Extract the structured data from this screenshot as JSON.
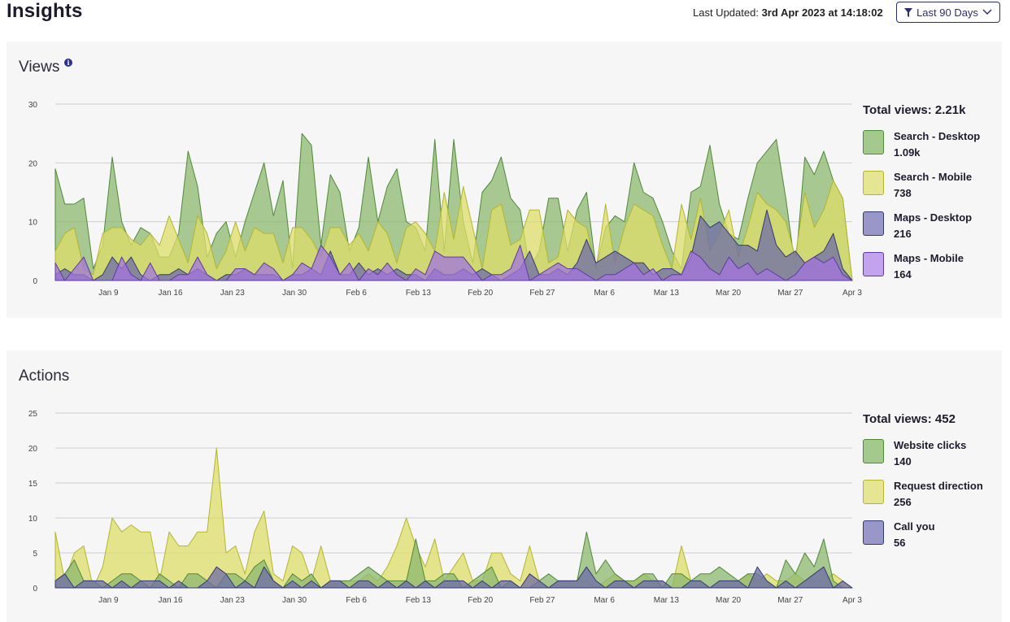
{
  "header": {
    "title": "Insights",
    "last_updated_label": "Last Updated:",
    "last_updated_value": "3rd Apr 2023 at 14:18:02",
    "range_button_label": "Last 90 Days"
  },
  "colors": {
    "panel_bg": "#f6f6f6",
    "accent": "#2a2f6e",
    "green_fill": "#8cb86e",
    "green_stroke": "#4f8a35",
    "yellow_fill": "#dedd6a",
    "yellow_stroke": "#b5b52a",
    "navy_fill": "#6e6ca8",
    "navy_stroke": "#343a78",
    "purple_fill": "#a374dc",
    "purple_stroke": "#5d3aa8"
  },
  "views": {
    "title": "Views",
    "info_icon": "info-icon",
    "total_label": "Total views: 2.21k",
    "legend": [
      {
        "name": "Search - Desktop",
        "value": "1.09k",
        "color": "#a3c98c",
        "border": "#4f8a35"
      },
      {
        "name": "Search - Mobile",
        "value": "738",
        "color": "#e6e594",
        "border": "#b5b52a"
      },
      {
        "name": "Maps - Desktop",
        "value": "216",
        "color": "#9897c8",
        "border": "#343a78"
      },
      {
        "name": "Maps - Mobile",
        "value": "164",
        "color": "#c3a3ee",
        "border": "#5d3aa8"
      }
    ]
  },
  "actions": {
    "title": "Actions",
    "total_label": "Total views: 452",
    "legend": [
      {
        "name": "Website clicks",
        "value": "140",
        "color": "#a3c98c",
        "border": "#4f8a35"
      },
      {
        "name": "Request direction",
        "value": "256",
        "color": "#e6e594",
        "border": "#b5b52a"
      },
      {
        "name": "Call you",
        "value": "56",
        "color": "#9897c8",
        "border": "#343a78"
      }
    ]
  },
  "chart_data": [
    {
      "type": "area",
      "title": "Views",
      "ylim": [
        0,
        30
      ],
      "yticks": [
        0,
        10,
        20,
        30
      ],
      "xticks": [
        {
          "day": 9,
          "label": "Jan 9"
        },
        {
          "day": 16,
          "label": "Jan 16"
        },
        {
          "day": 23,
          "label": "Jan 23"
        },
        {
          "day": 30,
          "label": "Jan 30"
        },
        {
          "day": 37,
          "label": "Feb 6"
        },
        {
          "day": 44,
          "label": "Feb 13"
        },
        {
          "day": 51,
          "label": "Feb 20"
        },
        {
          "day": 58,
          "label": "Feb 27"
        },
        {
          "day": 65,
          "label": "Mar 6"
        },
        {
          "day": 72,
          "label": "Mar 13"
        },
        {
          "day": 79,
          "label": "Mar 20"
        },
        {
          "day": 86,
          "label": "Mar 27"
        },
        {
          "day": 93,
          "label": "Apr 3"
        }
      ],
      "x_start_day": 3,
      "x_end_day": 93,
      "series": [
        {
          "name": "Search - Desktop",
          "fill": "#8cb86e",
          "stroke": "#4f8a35",
          "values": [
            19,
            13,
            13,
            14,
            2,
            6,
            21,
            10,
            6,
            9,
            8,
            4,
            4,
            8,
            22,
            16,
            4,
            8,
            10,
            4,
            10,
            15,
            20,
            11,
            17,
            2,
            25,
            23,
            6,
            18,
            15,
            5,
            9,
            21,
            10,
            16,
            19,
            10,
            9,
            5,
            24,
            5,
            24,
            10,
            3,
            15,
            17,
            21,
            14,
            12,
            2,
            5,
            14,
            14,
            5,
            12,
            15,
            2,
            9,
            11,
            10,
            20,
            15,
            14,
            10,
            5,
            2,
            15,
            16,
            23,
            13,
            8,
            7,
            14,
            20,
            22,
            24,
            14,
            2,
            21,
            18,
            22,
            17,
            14,
            0
          ]
        },
        {
          "name": "Search - Mobile",
          "fill": "#dedd6a",
          "stroke": "#b5b52a",
          "values": [
            5,
            8,
            9,
            2,
            1,
            8,
            9,
            9,
            7,
            6,
            8,
            6,
            11,
            7,
            3,
            11,
            8,
            2,
            5,
            10,
            5,
            9,
            8,
            8,
            3,
            9,
            9,
            7,
            4,
            9,
            9,
            6,
            8,
            5,
            10,
            8,
            3,
            9,
            10,
            8,
            5,
            15,
            7,
            16,
            9,
            2,
            12,
            13,
            6,
            7,
            12,
            12,
            3,
            4,
            12,
            10,
            9,
            2,
            13,
            3,
            9,
            13,
            12,
            11,
            6,
            2,
            13,
            7,
            14,
            5,
            8,
            12,
            4,
            9,
            15,
            13,
            12,
            10,
            4,
            15,
            9,
            12,
            17,
            14,
            0
          ]
        },
        {
          "name": "Maps - Desktop",
          "fill": "#6e6ca8",
          "stroke": "#343a78",
          "values": [
            1,
            2,
            1,
            1,
            0,
            1,
            4,
            2,
            4,
            1,
            0,
            1,
            1,
            2,
            1,
            2,
            1,
            0,
            1,
            1,
            2,
            1,
            1,
            1,
            0,
            1,
            1,
            2,
            1,
            5,
            1,
            1,
            3,
            1,
            2,
            1,
            2,
            1,
            1,
            0,
            2,
            1,
            1,
            2,
            1,
            2,
            1,
            0,
            1,
            2,
            5,
            1,
            1,
            2,
            1,
            3,
            7,
            3,
            4,
            5,
            4,
            3,
            3,
            1,
            2,
            2,
            1,
            4,
            11,
            9,
            10,
            8,
            6,
            6,
            5,
            12,
            6,
            4,
            5,
            3,
            4,
            5,
            8,
            2,
            0
          ]
        },
        {
          "name": "Maps - Mobile",
          "fill": "#a374dc",
          "stroke": "#5d3aa8",
          "values": [
            3,
            0,
            2,
            4,
            0,
            0,
            0,
            4,
            1,
            0,
            3,
            0,
            0,
            1,
            1,
            4,
            1,
            0,
            0,
            2,
            2,
            1,
            3,
            2,
            0,
            1,
            3,
            2,
            6,
            4,
            1,
            3,
            0,
            2,
            1,
            3,
            1,
            0,
            2,
            1,
            5,
            4,
            4,
            4,
            2,
            0,
            1,
            1,
            2,
            6,
            0,
            1,
            2,
            3,
            2,
            2,
            1,
            0,
            1,
            1,
            2,
            3,
            1,
            2,
            0,
            1,
            1,
            5,
            4,
            2,
            1,
            4,
            2,
            3,
            1,
            2,
            1,
            0,
            1,
            3,
            4,
            3,
            4,
            1,
            0
          ]
        }
      ]
    },
    {
      "type": "area",
      "title": "Actions",
      "ylim": [
        0,
        25
      ],
      "yticks": [
        0,
        5,
        10,
        15,
        20,
        25
      ],
      "xticks": [
        {
          "day": 9,
          "label": "Jan 9"
        },
        {
          "day": 16,
          "label": "Jan 16"
        },
        {
          "day": 23,
          "label": "Jan 23"
        },
        {
          "day": 30,
          "label": "Jan 30"
        },
        {
          "day": 37,
          "label": "Feb 6"
        },
        {
          "day": 44,
          "label": "Feb 13"
        },
        {
          "day": 51,
          "label": "Feb 20"
        },
        {
          "day": 58,
          "label": "Feb 27"
        },
        {
          "day": 65,
          "label": "Mar 6"
        },
        {
          "day": 72,
          "label": "Mar 13"
        },
        {
          "day": 79,
          "label": "Mar 20"
        },
        {
          "day": 86,
          "label": "Mar 27"
        },
        {
          "day": 93,
          "label": "Apr 3"
        }
      ],
      "x_start_day": 3,
      "x_end_day": 93,
      "series": [
        {
          "name": "Request direction",
          "fill": "#dedd6a",
          "stroke": "#b5b52a",
          "values": [
            8,
            1,
            5,
            6,
            0,
            3,
            10,
            8,
            9,
            8,
            8,
            1,
            8,
            6,
            6,
            8,
            8,
            20,
            5,
            6,
            2,
            8,
            11,
            2,
            1,
            6,
            5,
            1,
            6,
            1,
            1,
            1,
            1,
            2,
            1,
            3,
            6,
            10,
            6,
            3,
            7,
            1,
            3,
            5,
            1,
            1,
            5,
            5,
            2,
            1,
            6,
            1,
            0,
            1,
            1,
            1,
            1,
            0,
            1,
            2,
            1,
            1,
            2,
            1,
            1,
            0,
            6,
            1,
            1,
            0,
            1,
            1,
            1,
            2,
            1,
            2,
            1,
            1,
            2,
            1,
            1,
            1,
            2,
            1,
            0
          ]
        },
        {
          "name": "Website clicks",
          "fill": "#8cb86e",
          "stroke": "#4f8a35",
          "values": [
            1,
            2,
            4,
            1,
            1,
            0,
            1,
            2,
            2,
            1,
            0,
            2,
            1,
            0,
            2,
            2,
            1,
            0,
            2,
            2,
            1,
            3,
            4,
            1,
            0,
            2,
            1,
            2,
            0,
            1,
            1,
            1,
            2,
            3,
            2,
            1,
            1,
            1,
            7,
            1,
            1,
            2,
            2,
            0,
            1,
            2,
            3,
            0,
            1,
            0,
            0,
            1,
            2,
            1,
            1,
            1,
            8,
            2,
            4,
            2,
            1,
            1,
            2,
            2,
            0,
            2,
            2,
            1,
            2,
            2,
            3,
            2,
            1,
            2,
            2,
            1,
            0,
            4,
            2,
            5,
            3,
            7,
            1,
            0,
            0
          ]
        },
        {
          "name": "Call you",
          "fill": "#6e6ca8",
          "stroke": "#343a78",
          "values": [
            1,
            2,
            0,
            1,
            1,
            1,
            0,
            1,
            0,
            1,
            1,
            1,
            0,
            1,
            0,
            0,
            1,
            3,
            2,
            0,
            1,
            0,
            3,
            1,
            0,
            1,
            0,
            1,
            0,
            1,
            1,
            0,
            1,
            1,
            0,
            1,
            0,
            1,
            0,
            1,
            0,
            1,
            1,
            1,
            0,
            1,
            0,
            1,
            1,
            0,
            2,
            1,
            0,
            1,
            1,
            1,
            3,
            1,
            0,
            1,
            1,
            0,
            1,
            1,
            1,
            0,
            0,
            1,
            1,
            0,
            1,
            1,
            1,
            0,
            3,
            1,
            0,
            1,
            0,
            1,
            2,
            3,
            0,
            1,
            0
          ]
        }
      ]
    }
  ]
}
